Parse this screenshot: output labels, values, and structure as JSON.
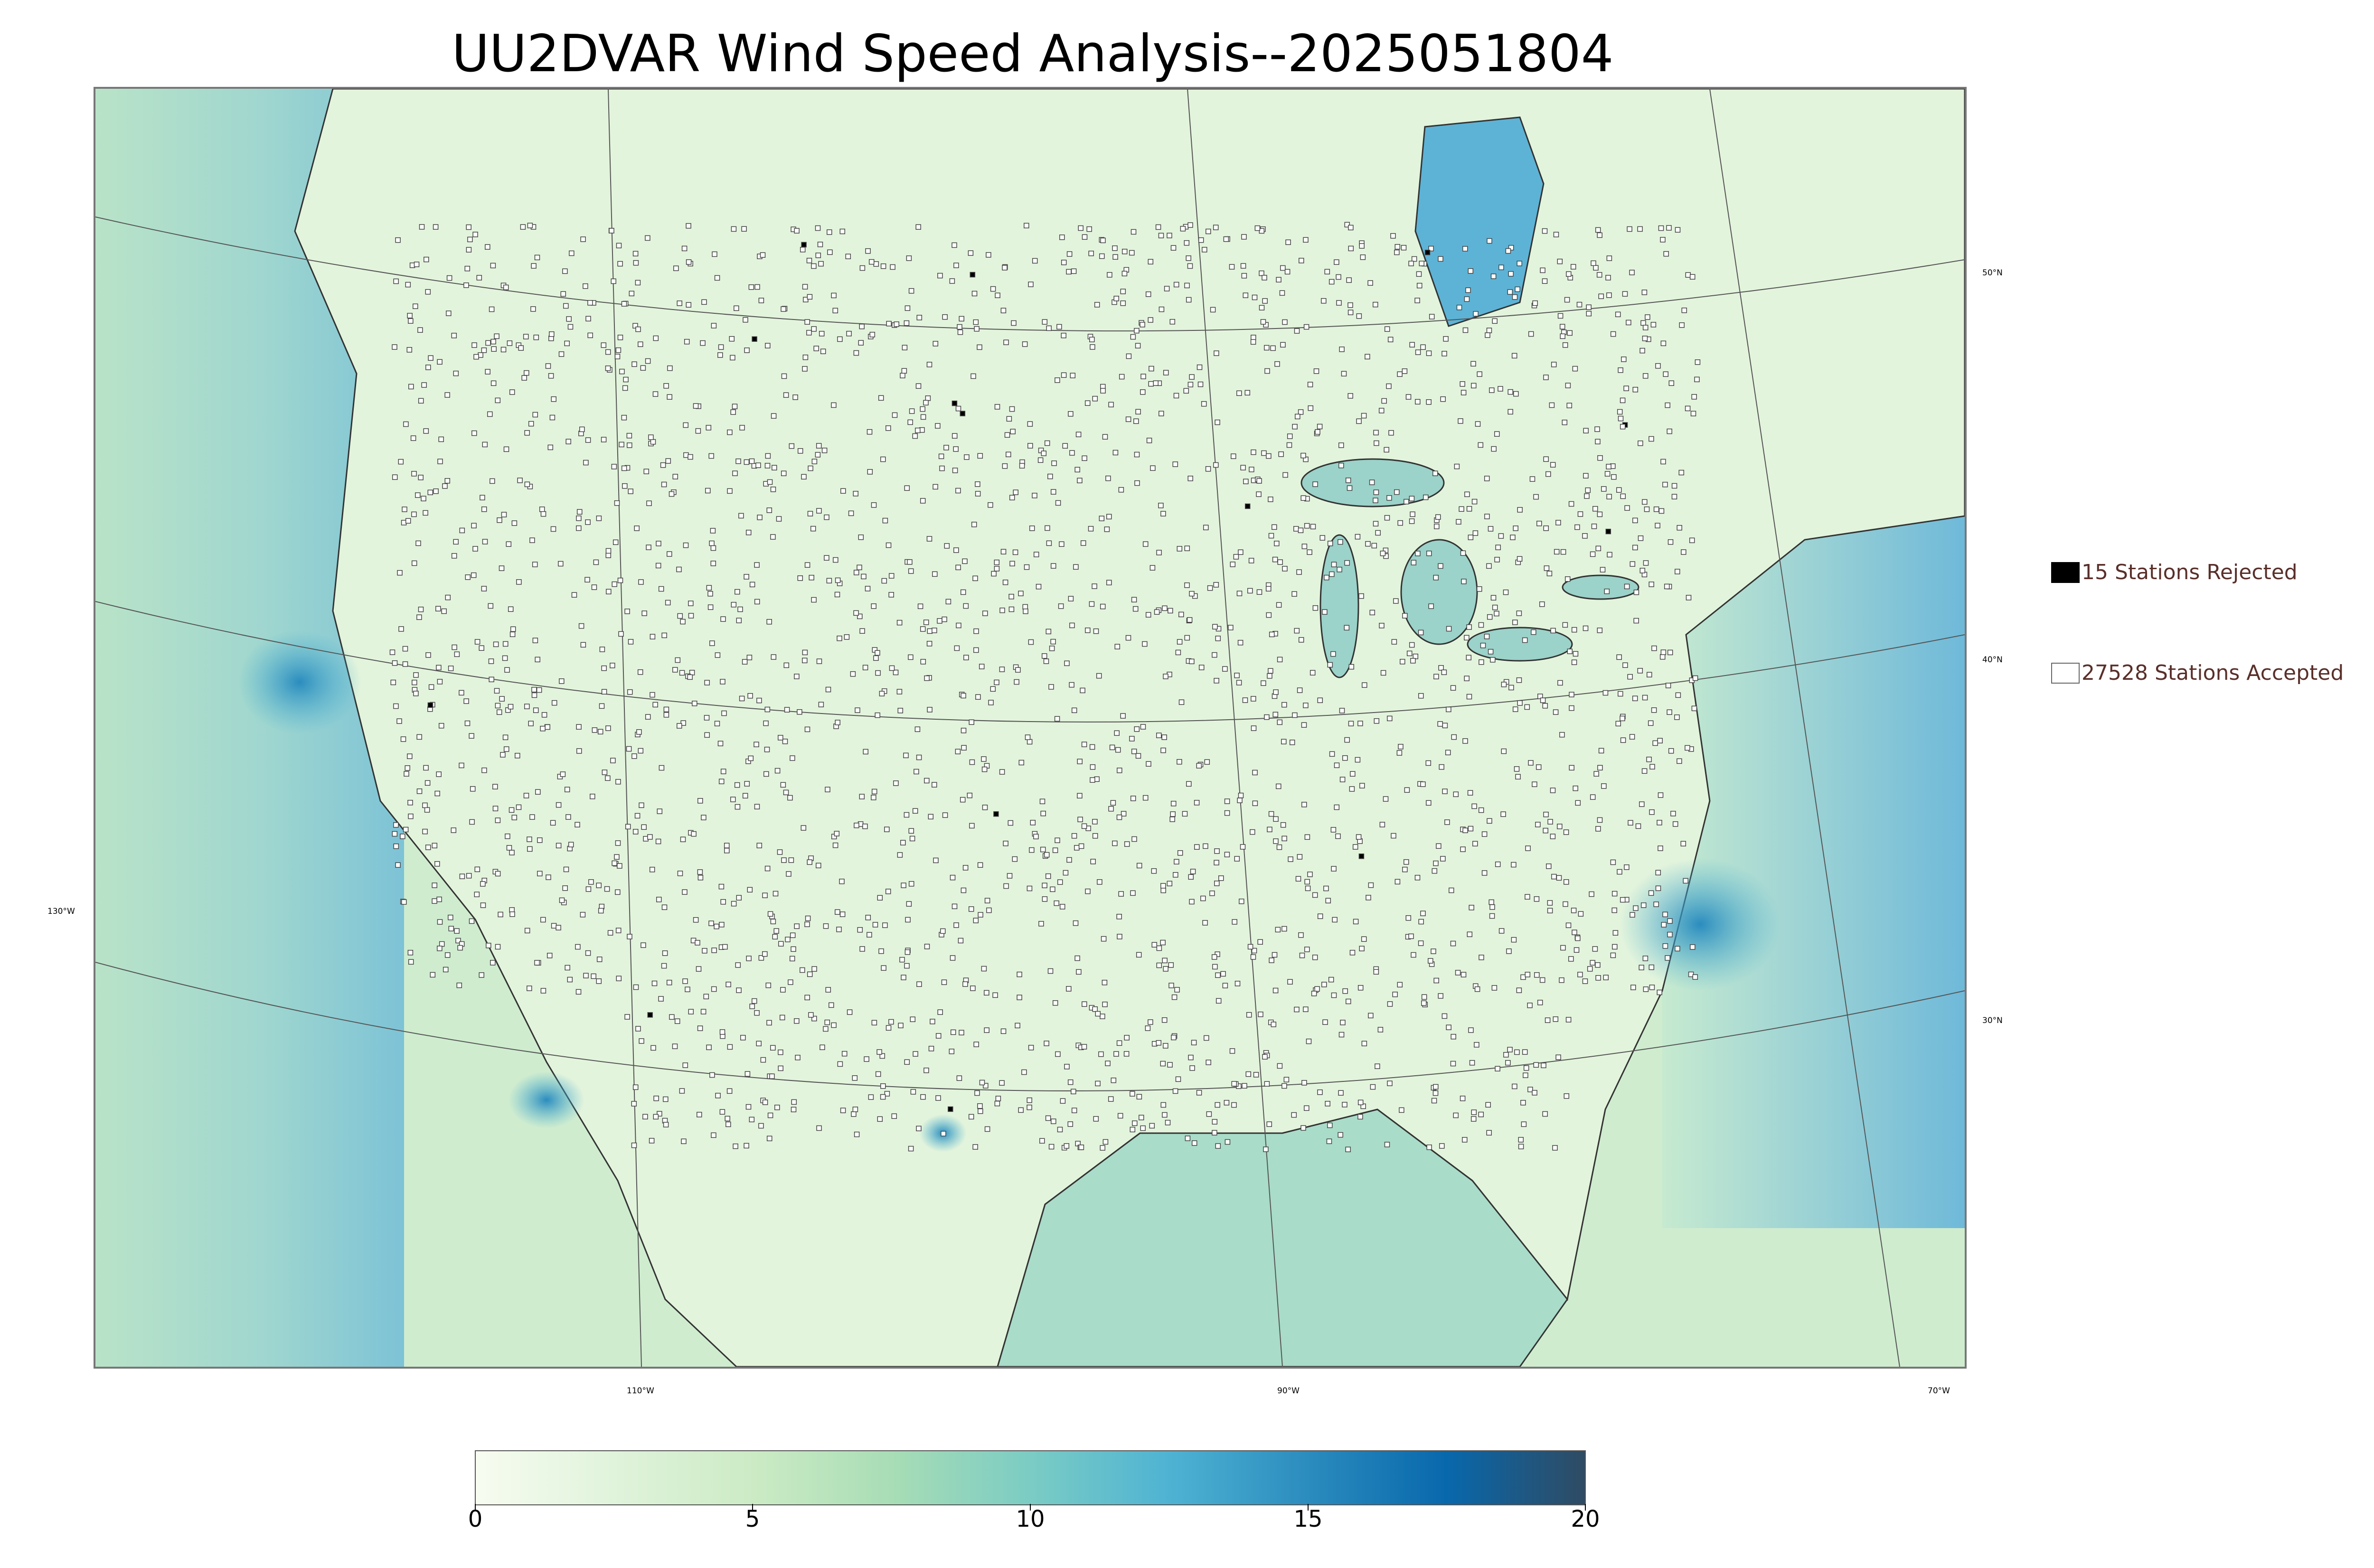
{
  "title": "UU2DVAR Wind Speed Analysis--2025051804",
  "map": {
    "graticule_labels": {
      "lat": [
        "50°N",
        "40°N",
        "30°N"
      ],
      "lon": [
        "130°W",
        "110°W",
        "90°W",
        "70°W"
      ]
    },
    "land_color": "#e6f5de",
    "water_color": "#d3eed8",
    "accepted_marker_fill": "#ffffff",
    "rejected_marker_fill": "#000000"
  },
  "legend": {
    "rejected": {
      "label": "15 Stations Rejected",
      "color": "#000000"
    },
    "accepted": {
      "label": "27528 Stations Accepted",
      "color": "#ffffff"
    }
  },
  "colorbar": {
    "min": 0,
    "max": 20,
    "ticks": [
      "0",
      "5",
      "10",
      "15",
      "20"
    ],
    "colors": [
      "#f7fcf0",
      "#e0f3db",
      "#ccebc5",
      "#a8ddb5",
      "#7bccc4",
      "#4eb3d3",
      "#2b8cbe",
      "#0868ac",
      "#2f4b63"
    ]
  }
}
